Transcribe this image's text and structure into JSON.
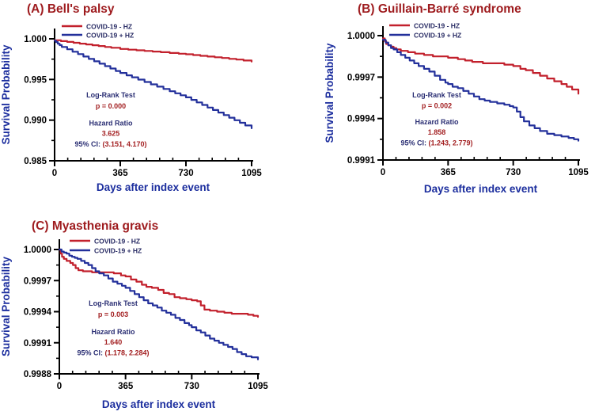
{
  "colors": {
    "curve_red": "#c2202c",
    "curve_blue": "#23309b",
    "title_red": "#9e1b1e",
    "value_red": "#a32022",
    "legend_navy": "#272a63",
    "annotation_navy": "#2b2f74",
    "axis_label_blue": "#1c2e9e",
    "tick_black": "#000000"
  },
  "chart_data": [
    {
      "id": "bells-palsy",
      "type": "line",
      "title": "(A) Bell's palsy",
      "xlabel": "Days after index event",
      "ylabel": "Survival Probability",
      "xlim": [
        0,
        1095
      ],
      "ylim": [
        0.985,
        1.0
      ],
      "xticks": [
        0,
        365,
        730,
        1095
      ],
      "xtick_labels": [
        "0",
        "365",
        "730",
        "1095"
      ],
      "yticks": [
        1.0,
        0.995,
        0.99,
        0.985
      ],
      "ytick_labels": [
        "1.000",
        "0.995",
        "0.990",
        "0.985"
      ],
      "x_minor_step": 73,
      "grid": false,
      "legend_position": "top-left-inside",
      "series": [
        {
          "name": "COVID-19 - HZ",
          "color_key": "curve_red",
          "step": true,
          "points": [
            [
              0,
              0.99982
            ],
            [
              35,
              0.99972
            ],
            [
              70,
              0.99962
            ],
            [
              105,
              0.99951
            ],
            [
              140,
              0.99941
            ],
            [
              175,
              0.99931
            ],
            [
              210,
              0.99921
            ],
            [
              245,
              0.99911
            ],
            [
              280,
              0.999
            ],
            [
              315,
              0.9989
            ],
            [
              365,
              0.99875
            ],
            [
              410,
              0.99867
            ],
            [
              455,
              0.99859
            ],
            [
              500,
              0.99851
            ],
            [
              545,
              0.99843
            ],
            [
              590,
              0.99835
            ],
            [
              640,
              0.99826
            ],
            [
              690,
              0.99817
            ],
            [
              730,
              0.9981
            ],
            [
              770,
              0.998
            ],
            [
              810,
              0.99791
            ],
            [
              850,
              0.99782
            ],
            [
              890,
              0.99773
            ],
            [
              930,
              0.99764
            ],
            [
              970,
              0.99754
            ],
            [
              1010,
              0.99745
            ],
            [
              1050,
              0.99733
            ],
            [
              1095,
              0.9972
            ]
          ]
        },
        {
          "name": "COVID-19 + HZ",
          "color_key": "curve_blue",
          "step": true,
          "points": [
            [
              0,
              0.99978
            ],
            [
              8,
              0.9996
            ],
            [
              18,
              0.9994
            ],
            [
              28,
              0.99922
            ],
            [
              40,
              0.999
            ],
            [
              70,
              0.99871
            ],
            [
              100,
              0.99841
            ],
            [
              130,
              0.99812
            ],
            [
              160,
              0.99782
            ],
            [
              190,
              0.99753
            ],
            [
              220,
              0.99723
            ],
            [
              250,
              0.99694
            ],
            [
              280,
              0.99664
            ],
            [
              310,
              0.99635
            ],
            [
              340,
              0.99605
            ],
            [
              365,
              0.9958
            ],
            [
              400,
              0.99551
            ],
            [
              430,
              0.99527
            ],
            [
              465,
              0.99498
            ],
            [
              500,
              0.99469
            ],
            [
              535,
              0.9944
            ],
            [
              570,
              0.99412
            ],
            [
              605,
              0.99383
            ],
            [
              640,
              0.99355
            ],
            [
              670,
              0.9933
            ],
            [
              700,
              0.99306
            ],
            [
              730,
              0.9928
            ],
            [
              760,
              0.99249
            ],
            [
              790,
              0.99218
            ],
            [
              820,
              0.99187
            ],
            [
              850,
              0.99155
            ],
            [
              880,
              0.99124
            ],
            [
              910,
              0.99093
            ],
            [
              940,
              0.99062
            ],
            [
              970,
              0.9903
            ],
            [
              1000,
              0.98999
            ],
            [
              1030,
              0.98968
            ],
            [
              1060,
              0.98934
            ],
            [
              1095,
              0.989
            ]
          ]
        }
      ],
      "annotations": {
        "logrank_label": "Log-Rank Test",
        "p_text": "p = 0.000",
        "hr_label": "Hazard Ratio",
        "hr_value": "3.625",
        "ci_label": "95% CI: ",
        "ci_value": "(3.151, 4.170)"
      }
    },
    {
      "id": "guillain-barre",
      "type": "line",
      "title": "(B) Guillain-Barré syndrome",
      "xlabel": "Days after index event",
      "ylabel": "Survival Probability",
      "xlim": [
        0,
        1095
      ],
      "ylim": [
        0.9991,
        1.0
      ],
      "xticks": [
        0,
        365,
        730,
        1095
      ],
      "xtick_labels": [
        "0",
        "365",
        "730",
        "1095"
      ],
      "yticks": [
        1.0,
        0.9997,
        0.9994,
        0.9991
      ],
      "ytick_labels": [
        "1.0000",
        "0.9997",
        "0.9994",
        "0.9991"
      ],
      "x_minor_step": 73,
      "grid": false,
      "legend_position": "top-left-inside",
      "series": [
        {
          "name": "COVID-19 - HZ",
          "color_key": "curve_red",
          "step": true,
          "points": [
            [
              0,
              0.99998
            ],
            [
              10,
              0.99996
            ],
            [
              18,
              0.99994
            ],
            [
              30,
              0.99993
            ],
            [
              45,
              0.99992
            ],
            [
              60,
              0.99991
            ],
            [
              75,
              0.9999
            ],
            [
              100,
              0.99989
            ],
            [
              140,
              0.99988
            ],
            [
              180,
              0.99987
            ],
            [
              230,
              0.99986
            ],
            [
              280,
              0.99985
            ],
            [
              365,
              0.99984
            ],
            [
              420,
              0.99983
            ],
            [
              460,
              0.99982
            ],
            [
              500,
              0.99981
            ],
            [
              560,
              0.9998
            ],
            [
              680,
              0.99979
            ],
            [
              730,
              0.99978
            ],
            [
              770,
              0.99976
            ],
            [
              800,
              0.99975
            ],
            [
              840,
              0.99973
            ],
            [
              880,
              0.99971
            ],
            [
              920,
              0.99969
            ],
            [
              960,
              0.99967
            ],
            [
              1000,
              0.99965
            ],
            [
              1030,
              0.99963
            ],
            [
              1060,
              0.99961
            ],
            [
              1095,
              0.99958
            ]
          ]
        },
        {
          "name": "COVID-19 + HZ",
          "color_key": "curve_blue",
          "step": true,
          "points": [
            [
              0,
              0.99997
            ],
            [
              15,
              0.99995
            ],
            [
              30,
              0.99993
            ],
            [
              45,
              0.99991
            ],
            [
              60,
              0.9999
            ],
            [
              80,
              0.99988
            ],
            [
              100,
              0.99986
            ],
            [
              125,
              0.99984
            ],
            [
              150,
              0.99982
            ],
            [
              175,
              0.9998
            ],
            [
              200,
              0.99978
            ],
            [
              230,
              0.99976
            ],
            [
              260,
              0.99974
            ],
            [
              290,
              0.99971
            ],
            [
              320,
              0.99968
            ],
            [
              350,
              0.99966
            ],
            [
              365,
              0.99965
            ],
            [
              390,
              0.99963
            ],
            [
              420,
              0.99962
            ],
            [
              450,
              0.9996
            ],
            [
              480,
              0.99958
            ],
            [
              510,
              0.99956
            ],
            [
              540,
              0.99954
            ],
            [
              570,
              0.99953
            ],
            [
              600,
              0.99952
            ],
            [
              640,
              0.99951
            ],
            [
              680,
              0.9995
            ],
            [
              710,
              0.99949
            ],
            [
              730,
              0.99948
            ],
            [
              750,
              0.99945
            ],
            [
              770,
              0.99941
            ],
            [
              790,
              0.99938
            ],
            [
              820,
              0.99935
            ],
            [
              850,
              0.99933
            ],
            [
              880,
              0.99931
            ],
            [
              920,
              0.99929
            ],
            [
              960,
              0.99928
            ],
            [
              1000,
              0.99927
            ],
            [
              1040,
              0.99926
            ],
            [
              1070,
              0.99925
            ],
            [
              1095,
              0.99924
            ]
          ]
        }
      ],
      "annotations": {
        "logrank_label": "Log-Rank Test",
        "p_text": "p = 0.002",
        "hr_label": "Hazard Ratio",
        "hr_value": "1.858",
        "ci_label": "95% CI: ",
        "ci_value": "(1.243, 2.779)"
      }
    },
    {
      "id": "myasthenia-gravis",
      "type": "line",
      "title": "(C) Myasthenia gravis",
      "xlabel": "Days after index event",
      "ylabel": "Survival Probability",
      "xlim": [
        0,
        1095
      ],
      "ylim": [
        0.9988,
        1.0
      ],
      "xticks": [
        0,
        365,
        730,
        1095
      ],
      "xtick_labels": [
        "0",
        "365",
        "730",
        "1095"
      ],
      "yticks": [
        1.0,
        0.9997,
        0.9994,
        0.9991,
        0.9988
      ],
      "ytick_labels": [
        "1.0000",
        "0.9997",
        "0.9994",
        "0.9991",
        "0.9988"
      ],
      "x_minor_step": 73,
      "grid": false,
      "legend_position": "top-left-inside",
      "series": [
        {
          "name": "COVID-19 - HZ",
          "color_key": "curve_red",
          "step": true,
          "points": [
            [
              0,
              1.0
            ],
            [
              8,
              0.99996
            ],
            [
              15,
              0.99993
            ],
            [
              25,
              0.99991
            ],
            [
              40,
              0.99989
            ],
            [
              60,
              0.99987
            ],
            [
              75,
              0.99985
            ],
            [
              90,
              0.99982
            ],
            [
              105,
              0.9998
            ],
            [
              130,
              0.99979
            ],
            [
              180,
              0.99978
            ],
            [
              300,
              0.99977
            ],
            [
              340,
              0.99975
            ],
            [
              365,
              0.99974
            ],
            [
              395,
              0.99971
            ],
            [
              425,
              0.99969
            ],
            [
              455,
              0.99966
            ],
            [
              480,
              0.99964
            ],
            [
              510,
              0.99963
            ],
            [
              545,
              0.99961
            ],
            [
              575,
              0.99958
            ],
            [
              605,
              0.99957
            ],
            [
              635,
              0.99954
            ],
            [
              665,
              0.99953
            ],
            [
              700,
              0.99952
            ],
            [
              730,
              0.99951
            ],
            [
              760,
              0.9995
            ],
            [
              780,
              0.99946
            ],
            [
              800,
              0.99942
            ],
            [
              830,
              0.99941
            ],
            [
              870,
              0.9994
            ],
            [
              910,
              0.99939
            ],
            [
              950,
              0.99938
            ],
            [
              1040,
              0.99937
            ],
            [
              1070,
              0.99936
            ],
            [
              1095,
              0.99935
            ]
          ]
        },
        {
          "name": "COVID-19 + HZ",
          "color_key": "curve_blue",
          "step": true,
          "points": [
            [
              0,
              1.0
            ],
            [
              12,
              0.99998
            ],
            [
              25,
              0.99997
            ],
            [
              40,
              0.99996
            ],
            [
              55,
              0.99994
            ],
            [
              70,
              0.99993
            ],
            [
              85,
              0.99992
            ],
            [
              100,
              0.99991
            ],
            [
              120,
              0.99989
            ],
            [
              140,
              0.99987
            ],
            [
              160,
              0.99985
            ],
            [
              180,
              0.99982
            ],
            [
              200,
              0.99979
            ],
            [
              220,
              0.99977
            ],
            [
              245,
              0.99975
            ],
            [
              270,
              0.99972
            ],
            [
              295,
              0.99969
            ],
            [
              320,
              0.99967
            ],
            [
              345,
              0.99965
            ],
            [
              365,
              0.99963
            ],
            [
              390,
              0.9996
            ],
            [
              415,
              0.99957
            ],
            [
              440,
              0.99954
            ],
            [
              465,
              0.99951
            ],
            [
              490,
              0.99948
            ],
            [
              515,
              0.99946
            ],
            [
              540,
              0.99944
            ],
            [
              565,
              0.99941
            ],
            [
              590,
              0.99939
            ],
            [
              615,
              0.99937
            ],
            [
              640,
              0.99934
            ],
            [
              665,
              0.99932
            ],
            [
              690,
              0.99929
            ],
            [
              715,
              0.99927
            ],
            [
              730,
              0.99925
            ],
            [
              755,
              0.99922
            ],
            [
              780,
              0.9992
            ],
            [
              805,
              0.99917
            ],
            [
              830,
              0.99914
            ],
            [
              855,
              0.99912
            ],
            [
              880,
              0.9991
            ],
            [
              905,
              0.99908
            ],
            [
              930,
              0.99906
            ],
            [
              955,
              0.99904
            ],
            [
              980,
              0.99901
            ],
            [
              1005,
              0.99899
            ],
            [
              1030,
              0.99897
            ],
            [
              1060,
              0.99896
            ],
            [
              1095,
              0.99894
            ]
          ]
        }
      ],
      "annotations": {
        "logrank_label": "Log-Rank Test",
        "p_text": "p = 0.003",
        "hr_label": "Hazard Ratio",
        "hr_value": "1.640",
        "ci_label": "95% CI: ",
        "ci_value": "(1.178, 2.284)"
      }
    }
  ]
}
